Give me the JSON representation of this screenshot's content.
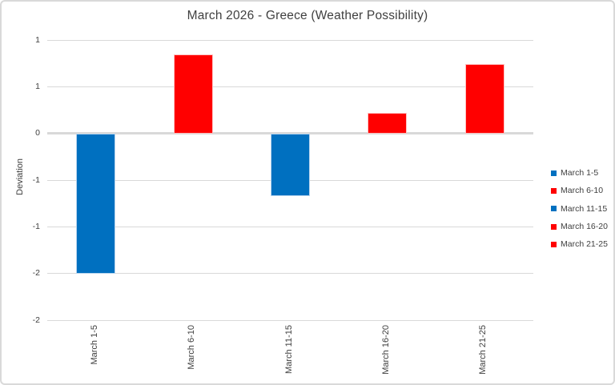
{
  "frame": {
    "background": "#ffffff",
    "border_color": "#d9d9d9"
  },
  "chart_data": {
    "type": "bar",
    "title": "March 2026 - Greece (Weather Possibility)",
    "xlabel": "",
    "ylabel": "Deviation",
    "categories": [
      "March 1-5",
      "March 6-10",
      "March 11-15",
      "March 16-20",
      "March 21-25"
    ],
    "values": [
      -1.5,
      0.85,
      -0.67,
      0.22,
      0.74
    ],
    "bar_colors": [
      "#0070C0",
      "#FF0000",
      "#0070C0",
      "#FF0000",
      "#FF0000"
    ],
    "bar_border_colors": [
      "#B9D5EE",
      "#FFC2C2",
      "#B9D5EE",
      "#FFC2C2",
      "#FFC2C2"
    ],
    "ylim": [
      -2,
      1
    ],
    "ytick_step": 0.5,
    "yticks": [
      {
        "value": 1.0,
        "label": "1"
      },
      {
        "value": 0.5,
        "label": "1"
      },
      {
        "value": 0.0,
        "label": "0"
      },
      {
        "value": -0.5,
        "label": "-1"
      },
      {
        "value": -1.0,
        "label": "-1"
      },
      {
        "value": -1.5,
        "label": "-2"
      },
      {
        "value": -2.0,
        "label": "-2"
      }
    ],
    "grid": true,
    "gridline_color": "#d9d9d9",
    "zero_line_color": "#d9d9d9",
    "text_color": "#404040",
    "legend": {
      "position": "right",
      "entries": [
        {
          "label": "March 1-5",
          "color": "#0070C0"
        },
        {
          "label": "March 6-10",
          "color": "#FF0000"
        },
        {
          "label": "March 11-15",
          "color": "#0070C0"
        },
        {
          "label": "March 16-20",
          "color": "#FF0000"
        },
        {
          "label": "March 21-25",
          "color": "#FF0000"
        }
      ]
    }
  }
}
